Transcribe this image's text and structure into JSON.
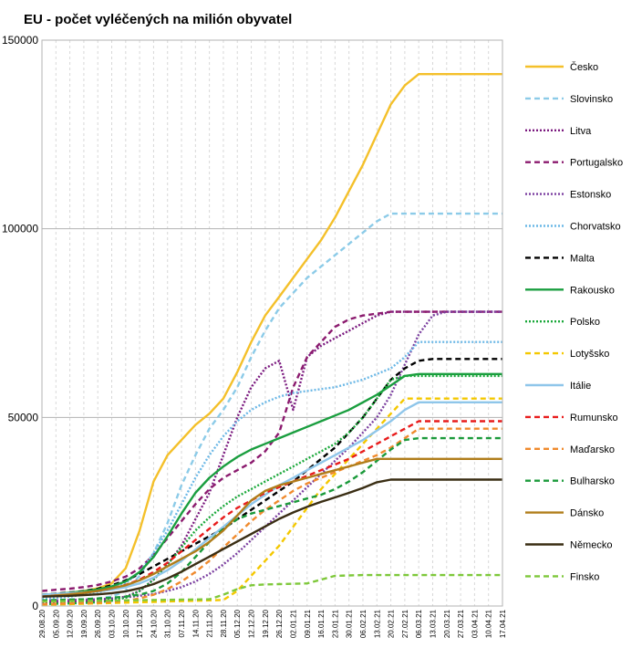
{
  "chart_data": {
    "type": "line",
    "title": "EU - počet vyléčených na milión obyvatel",
    "xlabel": "",
    "ylabel": "",
    "ylim": [
      0,
      150000
    ],
    "yticks": [
      "0",
      "50000",
      "100000",
      "150000"
    ],
    "grid": true,
    "legend_position": "right",
    "x": [
      "29.08.20",
      "05.09.20",
      "12.09.20",
      "19.09.20",
      "26.09.20",
      "03.10.20",
      "10.10.20",
      "17.10.20",
      "24.10.20",
      "31.10.20",
      "07.11.20",
      "14.11.20",
      "21.11.20",
      "28.11.20",
      "05.12.20",
      "12.12.20",
      "19.12.20",
      "26.12.20",
      "02.01.21",
      "09.01.21",
      "16.01.21",
      "23.01.21",
      "30.01.21",
      "06.02.21",
      "13.02.21",
      "20.02.21",
      "27.02.21",
      "06.03.21",
      "13.03.21",
      "20.03.21",
      "27.03.21",
      "03.04.21",
      "10.04.21",
      "17.04.21"
    ],
    "series": [
      {
        "name": "Česko",
        "color": "#f4c02a",
        "dash": "solid",
        "values": [
          3000,
          3200,
          3500,
          4000,
          4700,
          6000,
          10000,
          20000,
          33000,
          40000,
          44000,
          48000,
          51000,
          55000,
          62000,
          70000,
          77000,
          82000,
          87000,
          92000,
          97000,
          103000,
          110000,
          117000,
          125000,
          133000,
          138000,
          141000,
          141000,
          141000,
          141000,
          141000,
          141000,
          141000
        ]
      },
      {
        "name": "Slovinsko",
        "color": "#8ccbe8",
        "dash": "dashed",
        "values": [
          1500,
          1600,
          1700,
          1800,
          2000,
          2500,
          4000,
          8000,
          14000,
          22000,
          32000,
          40000,
          47000,
          52000,
          58000,
          66000,
          73000,
          79000,
          83000,
          87000,
          90000,
          93000,
          96000,
          99000,
          102000,
          104000,
          104000,
          104000,
          104000,
          104000,
          104000,
          104000,
          104000,
          104000
        ]
      },
      {
        "name": "Litva",
        "color": "#7b1a7f",
        "dash": "dotted",
        "values": [
          1000,
          1100,
          1200,
          1300,
          1500,
          1800,
          2500,
          4000,
          7000,
          11000,
          16000,
          23000,
          30000,
          40000,
          50000,
          58000,
          63000,
          65000,
          52000,
          66000,
          69000,
          71000,
          73000,
          75000,
          77000,
          78000,
          78000,
          78000,
          78000,
          78000,
          78000,
          78000,
          78000,
          78000
        ]
      },
      {
        "name": "Portugalsko",
        "color": "#8b1a6e",
        "dash": "dashed",
        "values": [
          4000,
          4300,
          4600,
          5000,
          5600,
          6500,
          7800,
          10000,
          13500,
          18000,
          22500,
          27000,
          31000,
          34000,
          36000,
          38000,
          41000,
          46000,
          58000,
          66000,
          70000,
          74000,
          76000,
          77000,
          77500,
          78000,
          78000,
          78000,
          78000,
          78000,
          78000,
          78000,
          78000,
          78000
        ]
      },
      {
        "name": "Estonsko",
        "color": "#7b3fa0",
        "dash": "dotted",
        "values": [
          1500,
          1500,
          1600,
          1700,
          1800,
          2000,
          2300,
          2700,
          3200,
          4000,
          5000,
          6500,
          8500,
          11000,
          14000,
          17500,
          21000,
          24500,
          28000,
          31500,
          35000,
          38500,
          42000,
          46000,
          50000,
          56000,
          64000,
          72000,
          77000,
          78000,
          78000,
          78000,
          78000,
          78000
        ]
      },
      {
        "name": "Chorvatsko",
        "color": "#6cb8e6",
        "dash": "dotted",
        "values": [
          2000,
          2200,
          2500,
          3000,
          3600,
          4500,
          6000,
          9000,
          14000,
          20000,
          27000,
          34000,
          40000,
          45000,
          49000,
          52000,
          54000,
          55500,
          56500,
          57000,
          57500,
          58000,
          59000,
          60000,
          61500,
          63000,
          66000,
          70000,
          70000,
          70000,
          70000,
          70000,
          70000,
          70000
        ]
      },
      {
        "name": "Malta",
        "color": "#000000",
        "dash": "dashed",
        "values": [
          3000,
          3300,
          3600,
          4000,
          4600,
          5500,
          6800,
          8500,
          10500,
          12500,
          14500,
          16500,
          18500,
          20500,
          23000,
          25500,
          28000,
          30500,
          33000,
          36000,
          39000,
          42000,
          46000,
          50000,
          55000,
          60000,
          63000,
          65000,
          65500,
          65500,
          65500,
          65500,
          65500,
          65500
        ]
      },
      {
        "name": "Rakousko",
        "color": "#1a9e3f",
        "dash": "solid",
        "values": [
          3000,
          3200,
          3500,
          3900,
          4400,
          5200,
          6500,
          9000,
          13000,
          18500,
          24500,
          30000,
          34000,
          37000,
          39500,
          41500,
          43000,
          44500,
          46000,
          47500,
          49000,
          50500,
          52000,
          54000,
          56000,
          58500,
          61000,
          61500,
          61500,
          61500,
          61500,
          61500,
          61500,
          61500
        ]
      },
      {
        "name": "Polsko",
        "color": "#1aa83a",
        "dash": "dotted",
        "values": [
          500,
          600,
          700,
          800,
          1000,
          1400,
          2200,
          4000,
          7000,
          11000,
          15500,
          20000,
          23500,
          26500,
          29000,
          31000,
          33000,
          35000,
          37000,
          39000,
          41000,
          43000,
          46000,
          50000,
          55000,
          60000,
          61000,
          61000,
          61000,
          61000,
          61000,
          61000,
          61000,
          61000
        ]
      },
      {
        "name": "Lotyšsko",
        "color": "#f4c800",
        "dash": "dashed",
        "values": [
          300,
          400,
          500,
          600,
          700,
          800,
          900,
          1000,
          1100,
          1200,
          1300,
          1400,
          1500,
          1600,
          4000,
          8000,
          12000,
          16000,
          21000,
          26000,
          31000,
          35000,
          39000,
          43000,
          47000,
          51000,
          55000,
          55000,
          55000,
          55000,
          55000,
          55000,
          55000,
          55000
        ]
      },
      {
        "name": "Itálie",
        "color": "#8fc6ea",
        "dash": "solid",
        "values": [
          3000,
          3200,
          3400,
          3600,
          3900,
          4300,
          5000,
          6000,
          7500,
          9500,
          12000,
          15000,
          18000,
          21000,
          24000,
          27000,
          29500,
          32000,
          34000,
          36000,
          38000,
          40000,
          42000,
          44000,
          46500,
          49000,
          52000,
          54000,
          54000,
          54000,
          54000,
          54000,
          54000,
          54000
        ]
      },
      {
        "name": "Rumunsko",
        "color": "#e81c1c",
        "dash": "dashed",
        "values": [
          2500,
          2800,
          3100,
          3500,
          4000,
          4700,
          5600,
          7000,
          9000,
          11500,
          14500,
          17500,
          20500,
          23500,
          26000,
          28000,
          30000,
          31500,
          33000,
          34500,
          36000,
          37500,
          39000,
          41000,
          43000,
          45000,
          47000,
          49000,
          49000,
          49000,
          49000,
          49000,
          49000,
          49000
        ]
      },
      {
        "name": "Maďarsko",
        "color": "#f08a2c",
        "dash": "dashed",
        "values": [
          500,
          600,
          700,
          800,
          900,
          1100,
          1400,
          2000,
          3000,
          4500,
          6500,
          9000,
          12000,
          15500,
          19000,
          22500,
          25500,
          28000,
          30500,
          32500,
          34000,
          35500,
          37000,
          38500,
          40000,
          42000,
          44500,
          47000,
          47000,
          47000,
          47000,
          47000,
          47000,
          47000
        ]
      },
      {
        "name": "Bulharsko",
        "color": "#1a9a3a",
        "dash": "dashed",
        "values": [
          1500,
          1600,
          1700,
          1800,
          2000,
          2200,
          2500,
          3000,
          4000,
          6000,
          9000,
          13000,
          17000,
          20500,
          23000,
          24500,
          25500,
          26500,
          27500,
          28500,
          29500,
          31000,
          33000,
          35500,
          38500,
          41500,
          44000,
          44500,
          44500,
          44500,
          44500,
          44500,
          44500,
          44500
        ]
      },
      {
        "name": "Dánsko",
        "color": "#b07d1a",
        "dash": "solid",
        "values": [
          2500,
          2800,
          3100,
          3500,
          4000,
          4700,
          5500,
          6800,
          8500,
          10500,
          12500,
          14500,
          17000,
          20000,
          24000,
          28000,
          30500,
          32000,
          33000,
          34000,
          35000,
          36000,
          37000,
          38000,
          39000,
          39000,
          39000,
          39000,
          39000,
          39000,
          39000,
          39000,
          39000,
          39000
        ]
      },
      {
        "name": "Německo",
        "color": "#3a2e14",
        "dash": "solid",
        "values": [
          2500,
          2600,
          2700,
          2900,
          3100,
          3400,
          3900,
          4700,
          5800,
          7300,
          9100,
          11100,
          13100,
          15100,
          17100,
          19100,
          21100,
          23100,
          24800,
          26300,
          27600,
          28800,
          30000,
          31300,
          32800,
          33500,
          33500,
          33500,
          33500,
          33500,
          33500,
          33500,
          33500,
          33500
        ]
      },
      {
        "name": "Finsko",
        "color": "#7ec83a",
        "dash": "dashed",
        "values": [
          1200,
          1250,
          1300,
          1350,
          1400,
          1450,
          1500,
          1550,
          1600,
          1650,
          1700,
          1750,
          1800,
          3000,
          4500,
          5500,
          5700,
          5800,
          5900,
          6000,
          7000,
          8000,
          8100,
          8200,
          8200,
          8200,
          8200,
          8200,
          8200,
          8200,
          8200,
          8200,
          8200,
          8200
        ]
      }
    ]
  }
}
